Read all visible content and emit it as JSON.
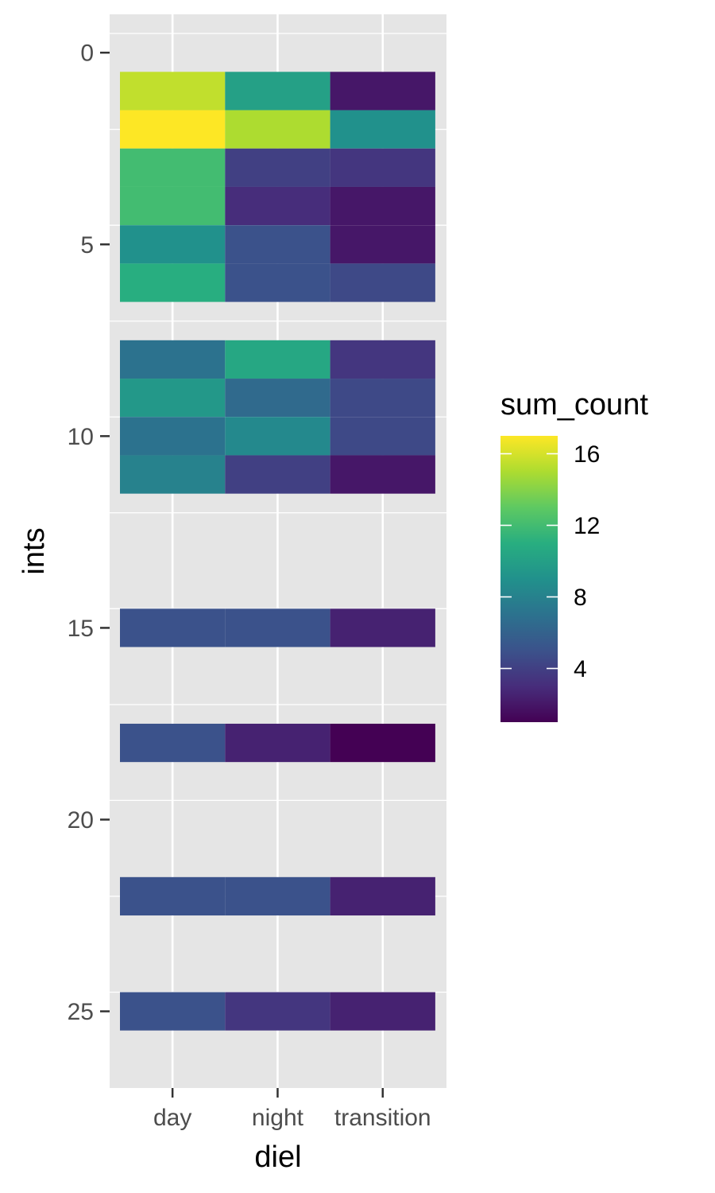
{
  "chart_data": {
    "type": "heatmap",
    "xlabel": "diel",
    "ylabel": "ints",
    "x_categories": [
      "day",
      "night",
      "transition"
    ],
    "y_ticks": [
      0,
      5,
      10,
      15,
      20,
      25
    ],
    "ylim": [
      -1,
      27
    ],
    "y_reversed": true,
    "grid": true,
    "colormap": "viridis",
    "cells": [
      {
        "x": "day",
        "y": 1,
        "value": 15.5
      },
      {
        "x": "night",
        "y": 1,
        "value": 10
      },
      {
        "x": "transition",
        "y": 1,
        "value": 2
      },
      {
        "x": "day",
        "y": 2,
        "value": 17
      },
      {
        "x": "night",
        "y": 2,
        "value": 15
      },
      {
        "x": "transition",
        "y": 2,
        "value": 9
      },
      {
        "x": "day",
        "y": 3,
        "value": 12
      },
      {
        "x": "night",
        "y": 3,
        "value": 4
      },
      {
        "x": "transition",
        "y": 3,
        "value": 3.5
      },
      {
        "x": "day",
        "y": 4,
        "value": 12
      },
      {
        "x": "night",
        "y": 4,
        "value": 3
      },
      {
        "x": "transition",
        "y": 4,
        "value": 2
      },
      {
        "x": "day",
        "y": 5,
        "value": 9
      },
      {
        "x": "night",
        "y": 5,
        "value": 5
      },
      {
        "x": "transition",
        "y": 5,
        "value": 2
      },
      {
        "x": "day",
        "y": 6,
        "value": 11
      },
      {
        "x": "night",
        "y": 6,
        "value": 5
      },
      {
        "x": "transition",
        "y": 6,
        "value": 4.5
      },
      {
        "x": "day",
        "y": 8,
        "value": 7
      },
      {
        "x": "night",
        "y": 8,
        "value": 10.5
      },
      {
        "x": "transition",
        "y": 8,
        "value": 3.5
      },
      {
        "x": "day",
        "y": 9,
        "value": 9.5
      },
      {
        "x": "night",
        "y": 9,
        "value": 6.5
      },
      {
        "x": "transition",
        "y": 9,
        "value": 4.5
      },
      {
        "x": "day",
        "y": 10,
        "value": 7
      },
      {
        "x": "night",
        "y": 10,
        "value": 8.5
      },
      {
        "x": "transition",
        "y": 10,
        "value": 4.5
      },
      {
        "x": "day",
        "y": 11,
        "value": 8
      },
      {
        "x": "night",
        "y": 11,
        "value": 4
      },
      {
        "x": "transition",
        "y": 11,
        "value": 2
      },
      {
        "x": "day",
        "y": 15,
        "value": 5
      },
      {
        "x": "night",
        "y": 15,
        "value": 5
      },
      {
        "x": "transition",
        "y": 15,
        "value": 2.5
      },
      {
        "x": "day",
        "y": 18,
        "value": 5
      },
      {
        "x": "night",
        "y": 18,
        "value": 2.5
      },
      {
        "x": "transition",
        "y": 18,
        "value": 1
      },
      {
        "x": "day",
        "y": 22,
        "value": 5
      },
      {
        "x": "night",
        "y": 22,
        "value": 5
      },
      {
        "x": "transition",
        "y": 22,
        "value": 2.5
      },
      {
        "x": "day",
        "y": 25,
        "value": 5
      },
      {
        "x": "night",
        "y": 25,
        "value": 3.5
      },
      {
        "x": "transition",
        "y": 25,
        "value": 2.5
      }
    ],
    "legend": {
      "title": "sum_count",
      "ticks": [
        4,
        8,
        12,
        16
      ],
      "min": 1,
      "max": 17,
      "placement": "right"
    }
  }
}
